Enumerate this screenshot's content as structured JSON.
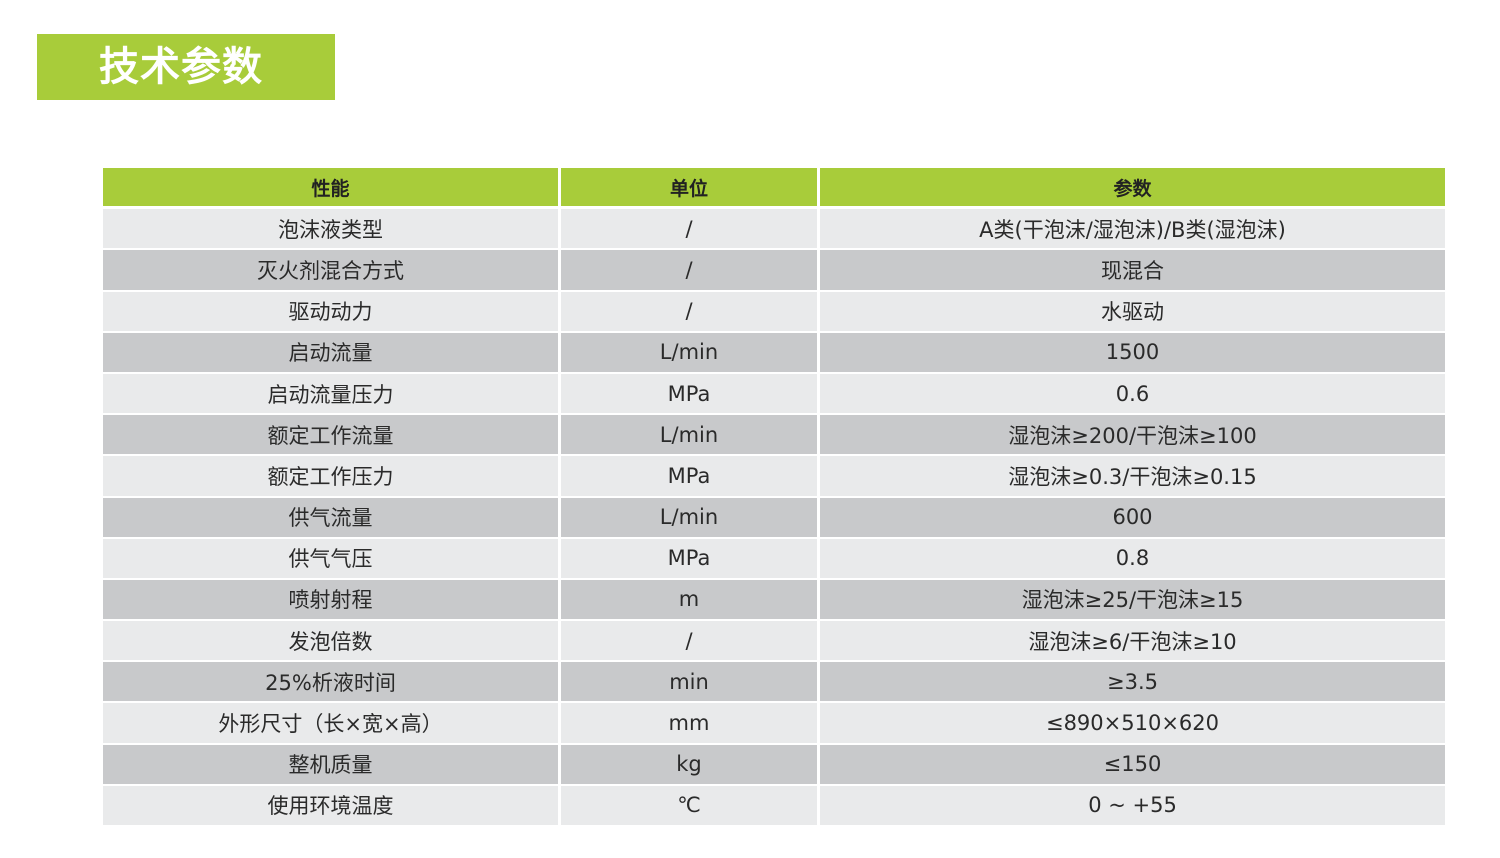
{
  "title": "技术参数",
  "colors": {
    "accent": "#a8cc3a",
    "row_light": "#e9eaeb",
    "row_dark": "#c8c9cb"
  },
  "table": {
    "headers": [
      "性能",
      "单位",
      "参数"
    ],
    "rows": [
      [
        "泡沫液类型",
        "/",
        "A类(干泡沫/湿泡沫)/B类(湿泡沫)"
      ],
      [
        "灭火剂混合方式",
        "/",
        "现混合"
      ],
      [
        "驱动动力",
        "/",
        "水驱动"
      ],
      [
        "启动流量",
        "L/min",
        "1500"
      ],
      [
        "启动流量压力",
        "MPa",
        "0.6"
      ],
      [
        "额定工作流量",
        "L/min",
        "湿泡沫≥200/干泡沫≥100"
      ],
      [
        "额定工作压力",
        "MPa",
        "湿泡沫≥0.3/干泡沫≥0.15"
      ],
      [
        "供气流量",
        "L/min",
        "600"
      ],
      [
        "供气气压",
        "MPa",
        "0.8"
      ],
      [
        "喷射射程",
        "m",
        "湿泡沫≥25/干泡沫≥15"
      ],
      [
        "发泡倍数",
        "/",
        "湿泡沫≥6/干泡沫≥10"
      ],
      [
        "25%析液时间",
        "min",
        "≥3.5"
      ],
      [
        "外形尺寸（长×宽×高）",
        "mm",
        "≤890×510×620"
      ],
      [
        "整机质量",
        "kg",
        "≤150"
      ],
      [
        "使用环境温度",
        "℃",
        "0 ~ +55"
      ]
    ]
  }
}
